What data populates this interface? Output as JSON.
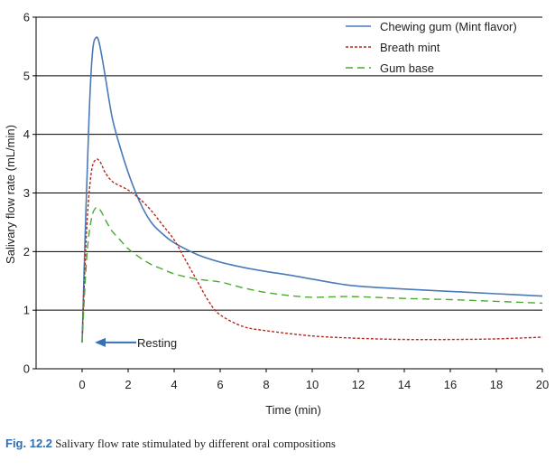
{
  "caption": {
    "figure_label": "Fig. 12.2",
    "text": "Salivary flow rate stimulated by different oral compositions"
  },
  "colors": {
    "chewing_gum": "#4a7ab8",
    "breath_mint": "#b52a1c",
    "gum_base": "#4aaa2e",
    "arrow": "#3a6fb5",
    "axis": "#000000"
  },
  "chart_data": {
    "type": "line",
    "title": "",
    "xlabel": "Time (min)",
    "ylabel": "Salivary flow rate (mL/min)",
    "xlim": [
      -2,
      20
    ],
    "ylim": [
      0,
      6
    ],
    "xticks": [
      0,
      2,
      4,
      6,
      8,
      10,
      12,
      14,
      16,
      18,
      20
    ],
    "yticks": [
      0,
      1,
      2,
      3,
      4,
      5,
      6
    ],
    "grid": "horizontal",
    "legend_position": "top-right",
    "series": [
      {
        "name": "Chewing gum (Mint flavor)",
        "style": "solid",
        "x": [
          0,
          0.15,
          0.3,
          0.45,
          0.6,
          0.75,
          1.0,
          1.3,
          1.6,
          2.0,
          2.5,
          3.0,
          3.5,
          4.0,
          5.0,
          6.0,
          7.0,
          8.0,
          9.0,
          10.0,
          11.0,
          12.0,
          14.0,
          16.0,
          18.0,
          20.0
        ],
        "y": [
          0.45,
          2.5,
          4.3,
          5.4,
          5.65,
          5.55,
          5.0,
          4.3,
          3.85,
          3.35,
          2.85,
          2.5,
          2.3,
          2.15,
          1.95,
          1.82,
          1.73,
          1.66,
          1.6,
          1.53,
          1.46,
          1.41,
          1.36,
          1.32,
          1.28,
          1.24
        ]
      },
      {
        "name": "Breath mint",
        "style": "dashed",
        "x": [
          0,
          0.2,
          0.4,
          0.6,
          0.8,
          1.0,
          1.3,
          1.6,
          2.0,
          2.5,
          3.0,
          3.5,
          4.0,
          4.5,
          5.0,
          5.5,
          6.0,
          7.0,
          8.0,
          10.0,
          12.0,
          14.0,
          16.0,
          18.0,
          20.0
        ],
        "y": [
          0.45,
          2.4,
          3.35,
          3.57,
          3.52,
          3.35,
          3.2,
          3.13,
          3.05,
          2.9,
          2.7,
          2.45,
          2.2,
          1.85,
          1.5,
          1.15,
          0.92,
          0.72,
          0.65,
          0.56,
          0.52,
          0.5,
          0.5,
          0.51,
          0.54
        ]
      },
      {
        "name": "Gum base",
        "style": "dashed",
        "x": [
          0,
          0.2,
          0.4,
          0.6,
          0.8,
          1.0,
          1.3,
          1.6,
          2.0,
          2.5,
          3.0,
          3.5,
          4.0,
          5.0,
          6.0,
          7.0,
          8.0,
          9.0,
          10.0,
          11.0,
          12.0,
          14.0,
          16.0,
          18.0,
          20.0
        ],
        "y": [
          0.45,
          1.9,
          2.55,
          2.75,
          2.7,
          2.55,
          2.35,
          2.22,
          2.05,
          1.9,
          1.78,
          1.7,
          1.62,
          1.53,
          1.48,
          1.38,
          1.3,
          1.25,
          1.22,
          1.23,
          1.23,
          1.2,
          1.18,
          1.15,
          1.12
        ]
      }
    ],
    "annotations": [
      {
        "text": "Resting",
        "x": 0,
        "y": 0.45,
        "arrow": "pointing-left"
      }
    ]
  }
}
